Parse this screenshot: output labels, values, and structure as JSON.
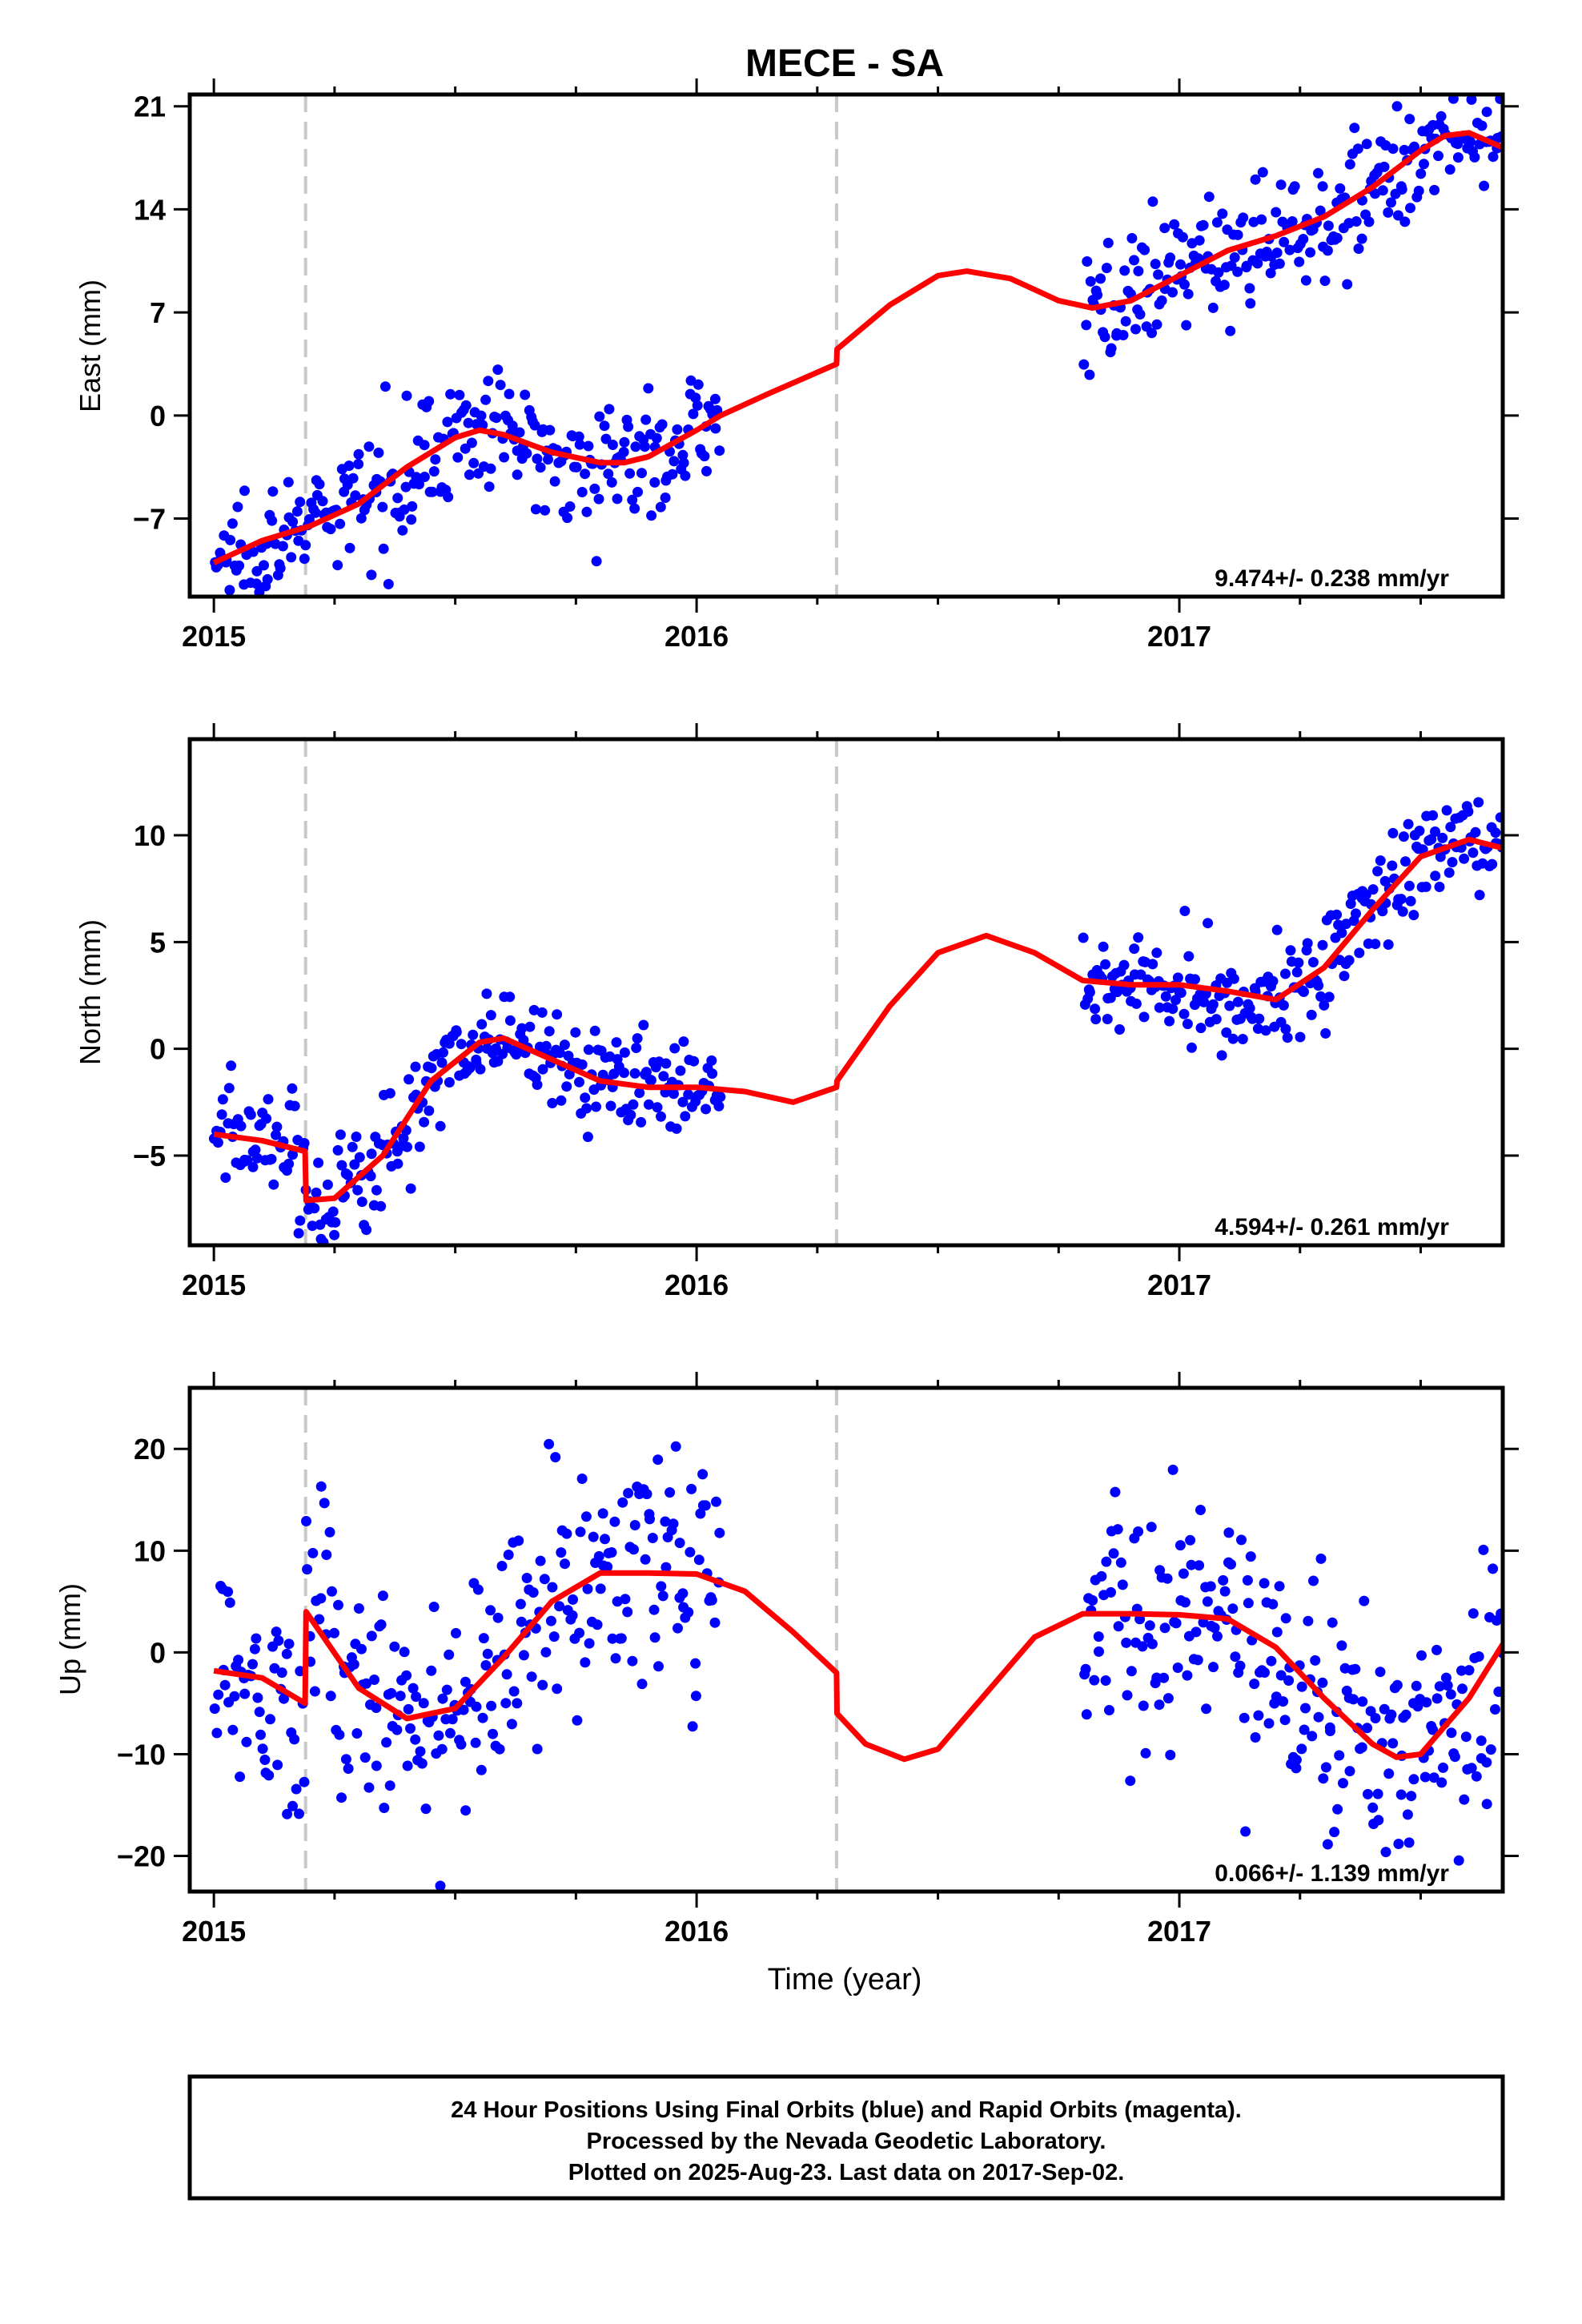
{
  "title": "MECE - SA",
  "xlabel": "Time (year)",
  "footer": {
    "line1": "24 Hour Positions Using Final Orbits (blue) and Rapid Orbits (magenta).",
    "line2": "Processed by the Nevada Geodetic Laboratory.",
    "line3": "Plotted on 2025-Aug-23. Last data on 2017-Sep-02."
  },
  "colors": {
    "points": "#0000ff",
    "fit": "#ff0000",
    "breaks": "#c8c8c8",
    "frame": "#000000"
  },
  "chart_data": [
    {
      "type": "scatter",
      "ylabel": "East (mm)",
      "rate": "9.474+/- 0.238 mm/yr",
      "xlim": [
        2014.95,
        2017.67
      ],
      "ylim": [
        -12.3,
        21.8
      ],
      "yticks": [
        -7,
        0,
        7,
        14,
        21
      ],
      "ytick_labels": [
        "−7",
        "0",
        "7",
        "14",
        "21"
      ],
      "xticks": [
        2015,
        2016,
        2017
      ],
      "xtick_labels": [
        "2015",
        "2016",
        "2017"
      ],
      "breaks": [
        2015.19,
        2016.29
      ],
      "data_segments": [
        [
          2015.0,
          2016.05
        ],
        [
          2016.8,
          2017.67
        ]
      ],
      "fit_x": [
        2015.0,
        2015.1,
        2015.2,
        2015.3,
        2015.4,
        2015.5,
        2015.55,
        2015.6,
        2015.7,
        2015.8,
        2015.85,
        2015.9,
        2016.0,
        2016.05,
        2016.15,
        2016.29,
        2016.291,
        2016.4,
        2016.5,
        2016.56,
        2016.65,
        2016.75,
        2016.82,
        2016.9,
        2017.0,
        2017.1,
        2017.2,
        2017.3,
        2017.4,
        2017.5,
        2017.55,
        2017.6,
        2017.67
      ],
      "fit_y": [
        -10,
        -8.5,
        -7.5,
        -6,
        -3.5,
        -1.5,
        -1,
        -1.3,
        -2.5,
        -3.2,
        -3.2,
        -2.8,
        -1,
        0,
        1.5,
        3.5,
        4.5,
        7.5,
        9.5,
        9.8,
        9.3,
        7.8,
        7.3,
        7.8,
        9.5,
        11.2,
        12.2,
        13.5,
        15.5,
        18,
        19,
        19.2,
        18.2
      ],
      "scatter": 2.0,
      "point_count": 520
    },
    {
      "type": "scatter",
      "ylabel": "North (mm)",
      "rate": "4.594+/- 0.261 mm/yr",
      "xlim": [
        2014.95,
        2017.67
      ],
      "ylim": [
        -9.2,
        14.5
      ],
      "yticks": [
        -5,
        0,
        5,
        10
      ],
      "ytick_labels": [
        "−5",
        "0",
        "5",
        "10"
      ],
      "xticks": [
        2015,
        2016,
        2017
      ],
      "xtick_labels": [
        "2015",
        "2016",
        "2017"
      ],
      "breaks": [
        2015.19,
        2016.29
      ],
      "data_segments": [
        [
          2015.0,
          2016.05
        ],
        [
          2016.8,
          2017.67
        ]
      ],
      "fit_x": [
        2015.0,
        2015.1,
        2015.189,
        2015.191,
        2015.25,
        2015.35,
        2015.45,
        2015.55,
        2015.6,
        2015.7,
        2015.8,
        2015.9,
        2016.0,
        2016.1,
        2016.2,
        2016.29,
        2016.291,
        2016.4,
        2016.5,
        2016.6,
        2016.7,
        2016.8,
        2016.9,
        2017.0,
        2017.1,
        2017.2,
        2017.3,
        2017.4,
        2017.5,
        2017.6,
        2017.67
      ],
      "fit_y": [
        -4,
        -4.3,
        -4.8,
        -7.1,
        -7,
        -5,
        -1.5,
        0.3,
        0.5,
        -0.5,
        -1.5,
        -1.8,
        -1.8,
        -2,
        -2.5,
        -1.8,
        -1.5,
        2,
        4.5,
        5.3,
        4.5,
        3.2,
        3,
        3,
        2.7,
        2.3,
        3.8,
        6.5,
        9,
        9.8,
        9.4
      ],
      "scatter": 1.3,
      "point_count": 520
    },
    {
      "type": "scatter",
      "ylabel": "Up (mm)",
      "rate": "0.066+/- 1.139 mm/yr",
      "xlim": [
        2014.95,
        2017.67
      ],
      "ylim": [
        -23.5,
        26
      ],
      "yticks": [
        -20,
        -10,
        0,
        10,
        20
      ],
      "ytick_labels": [
        "−20",
        "−10",
        "0",
        "10",
        "20"
      ],
      "xticks": [
        2015,
        2016,
        2017
      ],
      "xtick_labels": [
        "2015",
        "2016",
        "2017"
      ],
      "breaks": [
        2015.19,
        2016.29
      ],
      "data_segments": [
        [
          2015.0,
          2016.05
        ],
        [
          2016.8,
          2017.67
        ]
      ],
      "fit_x": [
        2015.0,
        2015.1,
        2015.189,
        2015.191,
        2015.3,
        2015.4,
        2015.5,
        2015.6,
        2015.7,
        2015.8,
        2015.9,
        2016.0,
        2016.1,
        2016.2,
        2016.29,
        2016.291,
        2016.35,
        2016.43,
        2016.5,
        2016.6,
        2016.7,
        2016.8,
        2016.9,
        2017.0,
        2017.1,
        2017.2,
        2017.3,
        2017.4,
        2017.45,
        2017.5,
        2017.6,
        2017.67
      ],
      "fit_y": [
        -1.8,
        -2.5,
        -5,
        4,
        -3.5,
        -6.5,
        -5.5,
        -0.5,
        5,
        7.8,
        7.8,
        7.7,
        6,
        2,
        -2,
        -6,
        -9,
        -10.5,
        -9.5,
        -4,
        1.5,
        3.8,
        3.8,
        3.7,
        3.3,
        0.5,
        -4.5,
        -9,
        -10.3,
        -10,
        -4.5,
        0.8
      ],
      "scatter": 6.0,
      "point_count": 520
    }
  ]
}
